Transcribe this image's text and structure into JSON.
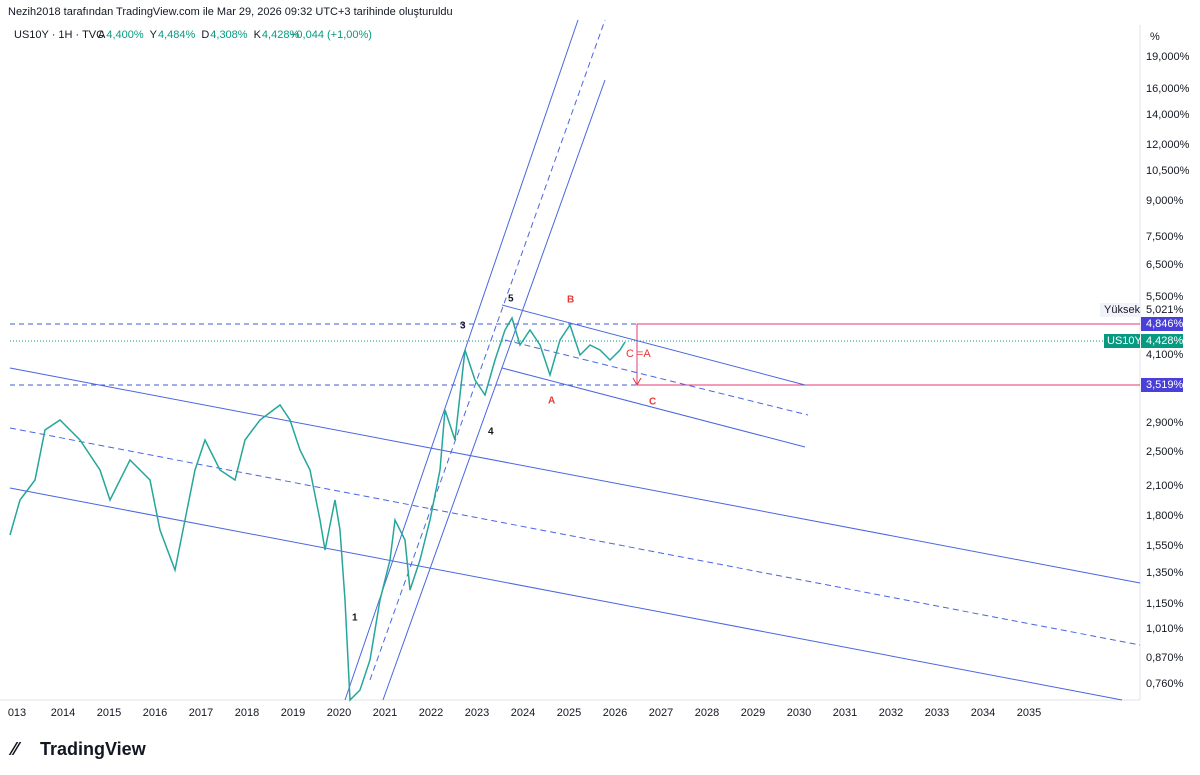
{
  "header": {
    "title": "Nezih2018 tarafından TradingView.com ile Mar 29, 2026 09:32 UTC+3 tarihinde oluşturuldu"
  },
  "legend": {
    "symbol": "US10Y · 1H · TVC",
    "fields": [
      {
        "key": "A",
        "value": "4,400%"
      },
      {
        "key": "Y",
        "value": "4,484%"
      },
      {
        "key": "D",
        "value": "4,308%"
      },
      {
        "key": "K",
        "value": "4,428%"
      }
    ],
    "change": "+0,044 (+1,00%)"
  },
  "price_axis": {
    "unit": "%",
    "labels": [
      "19,000%",
      "16,000%",
      "14,000%",
      "12,000%",
      "10,500%",
      "9,000%",
      "7,500%",
      "6,500%",
      "5,500%",
      "4,100%",
      "2,900%",
      "2,500%",
      "2,100%",
      "1,800%",
      "1,550%",
      "1,350%",
      "1,150%",
      "1,010%",
      "0,870%",
      "0,760%"
    ]
  },
  "price_tags": {
    "high_label": "Yüksek",
    "high_value": "5,021%",
    "upper_level": "4,846%",
    "symbol": "US10Y",
    "last": "4,428%",
    "lower_level": "3,519%"
  },
  "time_axis": {
    "labels": [
      "013",
      "2014",
      "2015",
      "2016",
      "2017",
      "2018",
      "2019",
      "2020",
      "2021",
      "2022",
      "2023",
      "2024",
      "2025",
      "2026",
      "2027",
      "2028",
      "2029",
      "2030",
      "2031",
      "2032",
      "2033",
      "2034",
      "2035"
    ]
  },
  "waves": {
    "w1": "1",
    "w3": "3",
    "w4": "4",
    "w5": "5",
    "a1": "A",
    "b": "B",
    "c": "C",
    "c_eq_a": "C =A"
  },
  "footer": {
    "brand": "TradingView"
  }
}
